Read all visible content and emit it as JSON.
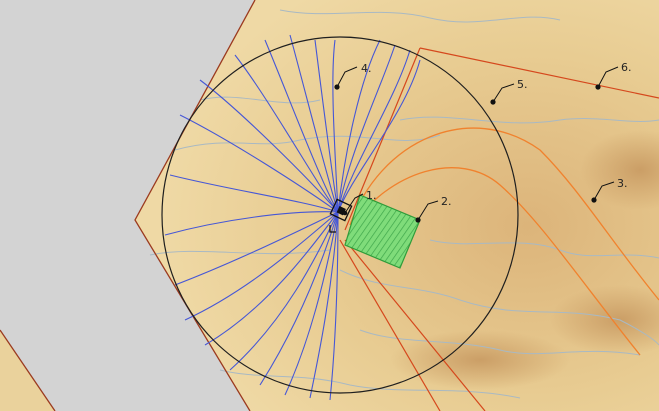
{
  "map": {
    "colors": {
      "background": "#d3d3d3",
      "terrain": "#e9cf95",
      "terrain_dark": "#d9b277",
      "contour": "#a9b9c3",
      "boundary": "#9b3a1f",
      "red_line": "#d5481d",
      "orange_line": "#f0822e",
      "blue_line": "#4657d6",
      "circle": "#1f1f1f",
      "green_fill": "#6fd36a",
      "green_edge": "#2f9c3a"
    },
    "callouts": [
      {
        "id": "1",
        "text": "1."
      },
      {
        "id": "2",
        "text": "2."
      },
      {
        "id": "3",
        "text": "3."
      },
      {
        "id": "4",
        "text": "4."
      },
      {
        "id": "5",
        "text": "5."
      },
      {
        "id": "6",
        "text": "6."
      }
    ]
  }
}
